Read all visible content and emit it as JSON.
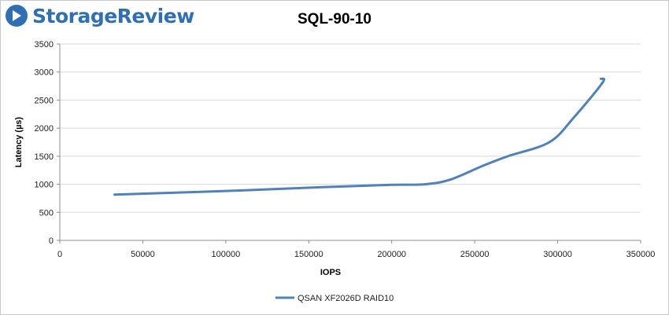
{
  "brand": {
    "name": "StorageReview",
    "logo_color": "#2f70b5"
  },
  "chart_data": {
    "type": "line",
    "title": "SQL-90-10",
    "xlabel": "IOPS",
    "ylabel": "Latency (µs)",
    "xlim": [
      0,
      350000
    ],
    "ylim": [
      0,
      3500
    ],
    "x_ticks": [
      0,
      50000,
      100000,
      150000,
      200000,
      250000,
      300000,
      350000
    ],
    "y_ticks": [
      0,
      500,
      1000,
      1500,
      2000,
      2500,
      3000,
      3500
    ],
    "grid": true,
    "legend_position": "bottom",
    "series": [
      {
        "name": "QSAN XF2026D RAID10",
        "color": "#4f81bd",
        "points": [
          [
            33000,
            815
          ],
          [
            100000,
            880
          ],
          [
            160000,
            950
          ],
          [
            200000,
            990
          ],
          [
            220000,
            1000
          ],
          [
            235000,
            1080
          ],
          [
            255000,
            1330
          ],
          [
            270000,
            1500
          ],
          [
            295000,
            1750
          ],
          [
            310000,
            2200
          ],
          [
            327000,
            2810
          ],
          [
            326000,
            2880
          ]
        ]
      }
    ]
  }
}
